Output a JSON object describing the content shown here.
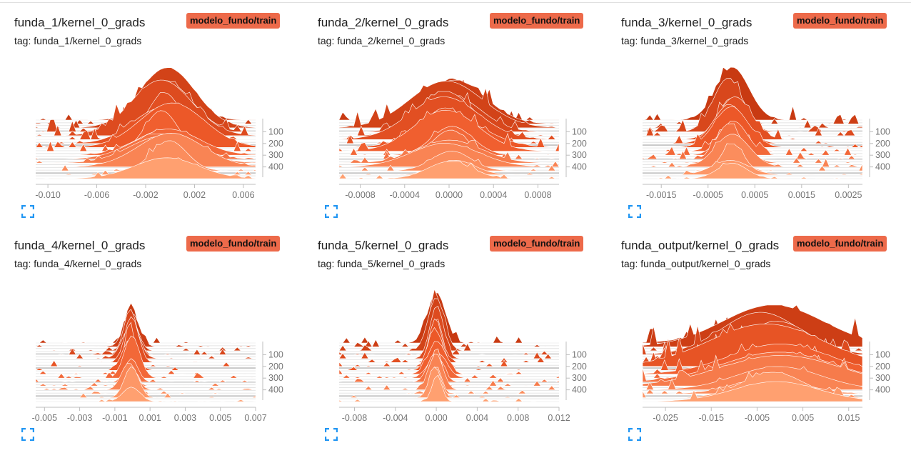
{
  "run_label": "modelo_fundo/train",
  "colors": {
    "dark": "#c83a12",
    "mid": "#ef5a2a",
    "light": "#ffa070",
    "run_badge": "#ed6a4a"
  },
  "chart_data": [
    {
      "type": "histogram",
      "title": "funda_1/kernel_0_grads",
      "tag": "tag: funda_1/kernel_0_grads",
      "xlim": [
        -0.011,
        0.007
      ],
      "xticks": [
        -0.01,
        -0.006,
        -0.002,
        0.002,
        0.006
      ],
      "xtick_labels": [
        "-0.010",
        "-0.006",
        "-0.002",
        "0.002",
        "0.006"
      ],
      "step_ticks": [
        "100",
        "200",
        "300",
        "400"
      ],
      "step_range": [
        0,
        500
      ],
      "center": -0.0003,
      "spread": 0.0018,
      "peak_height": 86,
      "spikiness": 0.45
    },
    {
      "type": "histogram",
      "title": "funda_2/kernel_0_grads",
      "tag": "tag: funda_2/kernel_0_grads",
      "xlim": [
        -0.00099,
        0.00099
      ],
      "xticks": [
        -0.0008,
        -0.0004,
        0.0,
        0.0004,
        0.0008
      ],
      "xtick_labels": [
        "-0.0008",
        "-0.0004",
        "0.0000",
        "0.0004",
        "0.0008"
      ],
      "step_ticks": [
        "100",
        "200",
        "300",
        "400"
      ],
      "step_range": [
        0,
        500
      ],
      "center": 0.0,
      "spread": 0.00022,
      "peak_height": 80,
      "spikiness": 0.5
    },
    {
      "type": "histogram",
      "title": "funda_3/kernel_0_grads",
      "tag": "tag: funda_3/kernel_0_grads",
      "xlim": [
        -0.0019,
        0.0028
      ],
      "xticks": [
        -0.0015,
        -0.0005,
        0.0005,
        0.0015,
        0.0025
      ],
      "xtick_labels": [
        "-0.0015",
        "-0.0005",
        "0.0005",
        "0.0015",
        "0.0025"
      ],
      "step_ticks": [
        "100",
        "200",
        "300",
        "400"
      ],
      "step_range": [
        0,
        500
      ],
      "center": 0.0,
      "spread": 0.00028,
      "peak_height": 82,
      "spikiness": 0.45
    },
    {
      "type": "histogram",
      "title": "funda_4/kernel_0_grads",
      "tag": "tag: funda_4/kernel_0_grads",
      "xlim": [
        -0.0055,
        0.007
      ],
      "xticks": [
        -0.005,
        -0.003,
        -0.001,
        0.001,
        0.003,
        0.005,
        0.007
      ],
      "xtick_labels": [
        "-0.005",
        "-0.003",
        "-0.001",
        "0.001",
        "0.003",
        "0.005",
        "0.007"
      ],
      "step_ticks": [
        "100",
        "200",
        "300",
        "400"
      ],
      "step_range": [
        0,
        500
      ],
      "center": -0.0001,
      "spread": 0.00035,
      "peak_height": 90,
      "spikiness": 0.25
    },
    {
      "type": "histogram",
      "title": "funda_5/kernel_0_grads",
      "tag": "tag: funda_5/kernel_0_grads",
      "xlim": [
        -0.0095,
        0.012
      ],
      "xticks": [
        -0.008,
        -0.004,
        0.0,
        0.004,
        0.008,
        0.012
      ],
      "xtick_labels": [
        "-0.008",
        "-0.004",
        "0.000",
        "0.004",
        "0.008",
        "0.012"
      ],
      "step_ticks": [
        "100",
        "200",
        "300",
        "400"
      ],
      "step_range": [
        0,
        500
      ],
      "center": 0.0,
      "spread": 0.0006,
      "peak_height": 90,
      "spikiness": 0.25
    },
    {
      "type": "histogram",
      "title": "funda_output/kernel_0_grads",
      "tag": "tag: funda_output/kernel_0_grads",
      "xlim": [
        -0.03,
        0.018
      ],
      "xticks": [
        -0.025,
        -0.015,
        -0.005,
        0.005,
        0.015
      ],
      "xtick_labels": [
        "-0.025",
        "-0.015",
        "-0.005",
        "0.005",
        "0.015"
      ],
      "step_ticks": [
        "100",
        "200",
        "300",
        "400"
      ],
      "step_range": [
        0,
        500
      ],
      "center": -0.002,
      "spread": 0.009,
      "peak_height": 75,
      "spikiness": 0.9
    }
  ]
}
